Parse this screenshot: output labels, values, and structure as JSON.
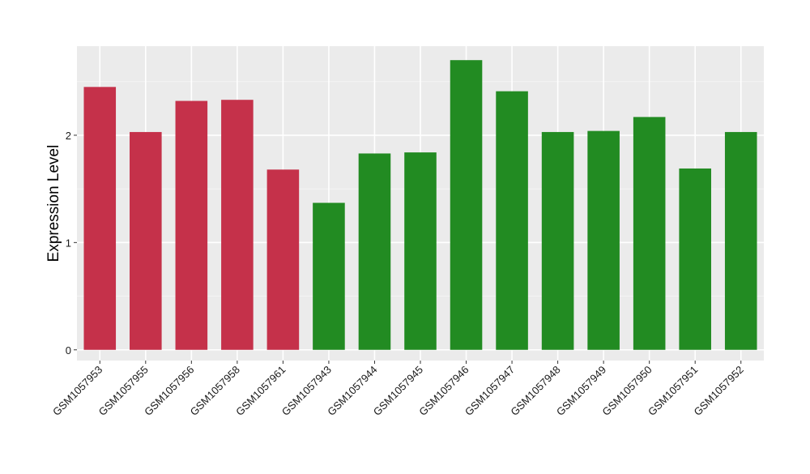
{
  "chart_data": {
    "type": "bar",
    "title": "",
    "xlabel": "",
    "ylabel": "Expression Level",
    "ylim": [
      -0.1,
      2.83
    ],
    "yticks": [
      0,
      1,
      2
    ],
    "grid": true,
    "legend": "none",
    "colors": {
      "panel_bg": "#EBEBEB",
      "grid_major": "#FFFFFF",
      "grid_minor": "#F5F5F5",
      "group_a": "#C5314A",
      "group_b": "#228B22",
      "tick_text": "#1A1A1A",
      "axis_title": "#000000"
    },
    "categories": [
      "GSM1057953",
      "GSM1057955",
      "GSM1057956",
      "GSM1057958",
      "GSM1057961",
      "GSM1057943",
      "GSM1057944",
      "GSM1057945",
      "GSM1057946",
      "GSM1057947",
      "GSM1057948",
      "GSM1057949",
      "GSM1057950",
      "GSM1057951",
      "GSM1057952"
    ],
    "values": [
      2.45,
      2.03,
      2.32,
      2.33,
      1.68,
      1.37,
      1.83,
      1.84,
      2.7,
      2.41,
      2.03,
      2.04,
      2.17,
      1.69,
      2.03
    ],
    "bar_groups": [
      "a",
      "a",
      "a",
      "a",
      "a",
      "b",
      "b",
      "b",
      "b",
      "b",
      "b",
      "b",
      "b",
      "b",
      "b"
    ]
  }
}
